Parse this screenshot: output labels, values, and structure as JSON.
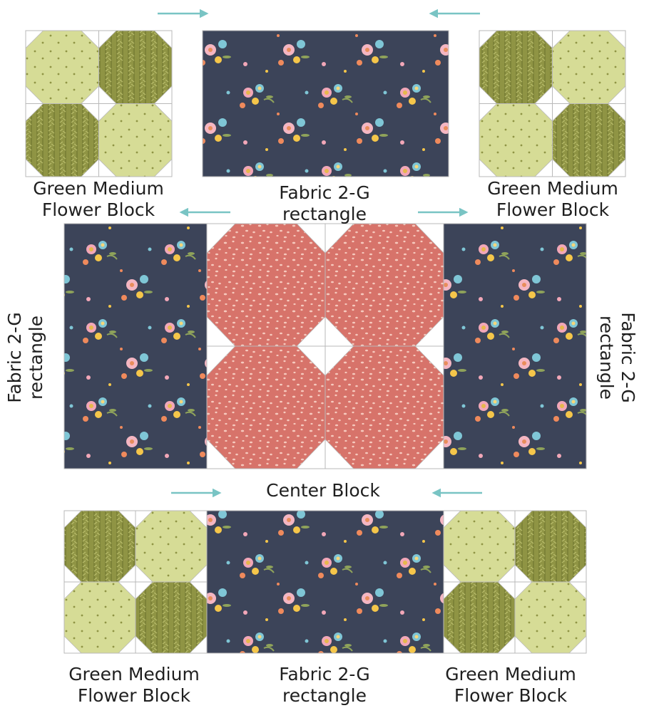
{
  "labels": {
    "green_block": [
      "Green Medium",
      "Flower Block"
    ],
    "rectangle": [
      "Fabric 2-G",
      "rectangle"
    ],
    "center": "Center Block"
  },
  "colors": {
    "navy": "#3c4459",
    "green_light": "#d6dc96",
    "green_dark": "#8f9444",
    "coral": "#d7736a",
    "white_tri": "#ffffff",
    "seam": "#b9b9b9",
    "arrow": "#79c4c4",
    "text": "#1f1f1f"
  },
  "arrow_directions": {
    "top_left": "right",
    "top_right": "left",
    "middle_left": "left",
    "middle_right": "right",
    "bottom_left": "right",
    "bottom_right": "left"
  }
}
